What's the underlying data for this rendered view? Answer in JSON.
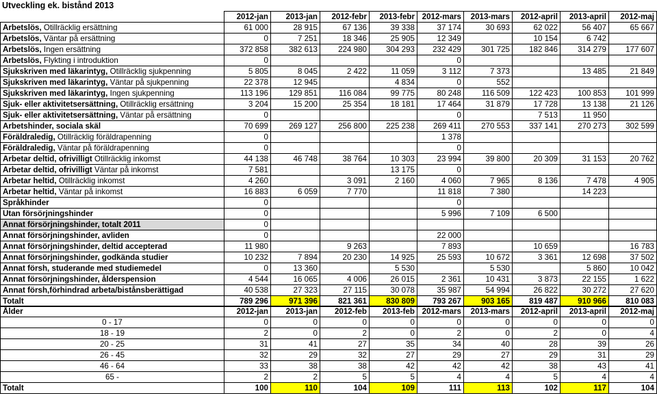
{
  "title": "Utveckling ek. bistånd 2013",
  "columns": [
    "2012-jan",
    "2013-jan",
    "2012-febr",
    "2013-febr",
    "2012-mars",
    "2013-mars",
    "2012-april",
    "2013-april",
    "2012-maj"
  ],
  "rows": [
    {
      "bold": "Arbetslös,",
      "rest": " Otillräcklig ersättning",
      "values": [
        "61 000",
        "28 915",
        "67 136",
        "39 338",
        "37 174",
        "30 693",
        "62 022",
        "56 407",
        "65 667"
      ]
    },
    {
      "bold": "Arbetslös,",
      "rest": " Väntar på ersättning",
      "values": [
        "0",
        "7 251",
        "18 346",
        "25 905",
        "12 349",
        "",
        "10 154",
        "6 742",
        ""
      ]
    },
    {
      "bold": "Arbetslös,",
      "rest": " Ingen ersättning",
      "values": [
        "372 858",
        "382 613",
        "224 980",
        "304 293",
        "232 429",
        "301 725",
        "182 846",
        "314 279",
        "177 607"
      ]
    },
    {
      "bold": "Arbetslös,",
      "rest": " Flykting i introduktion",
      "values": [
        "0",
        "",
        "",
        "",
        "0",
        "",
        "",
        "",
        ""
      ]
    },
    {
      "bold": "Sjukskriven med läkarintyg,",
      "rest": " Otillräcklig sjukpenning",
      "values": [
        "5 805",
        "8 045",
        "2 422",
        "11 059",
        "3 112",
        "7 373",
        "",
        "13 485",
        "21 849"
      ]
    },
    {
      "bold": "Sjukskriven med läkarintyg,",
      "rest": " Väntar på sjukpenning",
      "values": [
        "22 378",
        "12 945",
        "",
        "4 834",
        "0",
        "552",
        "",
        "",
        ""
      ]
    },
    {
      "bold": "Sjukskriven med läkarintyg,",
      "rest": " Ingen sjukpenning",
      "values": [
        "113 196",
        "129 851",
        "116 084",
        "99 775",
        "80 248",
        "116 509",
        "122 423",
        "100 853",
        "101 999"
      ]
    },
    {
      "bold": "Sjuk- eller aktivitetsersättning,",
      "rest": " Otillräcklig ersättning",
      "values": [
        "3 204",
        "15 200",
        "25 354",
        "18 181",
        "17 464",
        "31 879",
        "17 728",
        "13 138",
        "21 126"
      ]
    },
    {
      "bold": "Sjuk- eller aktivitetsersättning,",
      "rest": " Väntar på ersättning",
      "values": [
        "0",
        "",
        "",
        "",
        "0",
        "",
        "7 513",
        "11 950",
        ""
      ]
    },
    {
      "bold": "Arbetshinder, sociala skäl",
      "rest": "",
      "values": [
        "70 699",
        "269 127",
        "256 800",
        "225 238",
        "269 411",
        "270 553",
        "337 141",
        "270 273",
        "302 599"
      ]
    },
    {
      "bold": "Föräldraledig,",
      "rest": " Otillräcklig föräldrapenning",
      "values": [
        "0",
        "",
        "",
        "",
        "1 378",
        "",
        "",
        "",
        ""
      ]
    },
    {
      "bold": "Föräldraledig,",
      "rest": " Väntar på föräldrapenning",
      "values": [
        "0",
        "",
        "",
        "",
        "0",
        "",
        "",
        "",
        ""
      ]
    },
    {
      "bold": "Arbetar deltid, ofrivilligt",
      "rest": " Otillräcklig inkomst",
      "values": [
        "44 138",
        "46 748",
        "38 764",
        "10 303",
        "23 994",
        "39 800",
        "20 309",
        "31 153",
        "20 762"
      ]
    },
    {
      "bold": "Arbetar deltid, ofrivilligt",
      "rest": " Väntar på inkomst",
      "values": [
        "7 581",
        "",
        "",
        "13 175",
        "0",
        "",
        "",
        "",
        ""
      ]
    },
    {
      "bold": "Arbetar heltid,",
      "rest": " Otillräcklig inkomst",
      "values": [
        "4 260",
        "",
        "3 091",
        "2 160",
        "4 060",
        "7 965",
        "8 136",
        "7 478",
        "4 905"
      ]
    },
    {
      "bold": "Arbetar heltid,",
      "rest": " Väntar på inkomst",
      "values": [
        "16 883",
        "6 059",
        "7 770",
        "",
        "11 818",
        "7 380",
        "",
        "14 223",
        ""
      ]
    },
    {
      "bold": "Språkhinder",
      "rest": "",
      "values": [
        "0",
        "",
        "",
        "",
        "0",
        "",
        "",
        "",
        ""
      ]
    },
    {
      "bold": "Utan försörjningshinder",
      "rest": "",
      "values": [
        "0",
        "",
        "",
        "",
        "5 996",
        "7 109",
        "6 500",
        "",
        ""
      ]
    },
    {
      "bold": "Annat försörjningshinder, totalt 2011",
      "rest": "",
      "grey": true,
      "values": [
        "0",
        "",
        "",
        "",
        "",
        "",
        "",
        "",
        ""
      ]
    },
    {
      "bold": "Annat försörjningshinder, avliden",
      "rest": "",
      "values": [
        "0",
        "",
        "",
        "",
        "22 000",
        "",
        "",
        "",
        ""
      ]
    },
    {
      "bold": "Annat försörjningshinder, deltid accepterad",
      "rest": "",
      "values": [
        "11 980",
        "",
        "9 263",
        "",
        "7 893",
        "",
        "10 659",
        "",
        "16 783"
      ]
    },
    {
      "bold": "Annat försörjningshinder, godkända studier",
      "rest": "",
      "values": [
        "10 232",
        "7 894",
        "20 230",
        "14 925",
        "25 593",
        "10 672",
        "3 361",
        "12 698",
        "37 502"
      ]
    },
    {
      "bold": "Annat försh, studerande med studiemedel",
      "rest": "",
      "values": [
        "0",
        "13 360",
        "",
        "5 530",
        "",
        "5 530",
        "",
        "5 860",
        "10 042"
      ]
    },
    {
      "bold": "Annat försörjningshinder, ålderspension",
      "rest": "",
      "values": [
        "4 544",
        "16 065",
        "4 006",
        "26 015",
        "2 361",
        "10 431",
        "3 873",
        "22 155",
        "1 622"
      ]
    },
    {
      "bold": "Annat försh,förhindrad arbeta/bistånsberättigad",
      "rest": "",
      "values": [
        "40 538",
        "27 323",
        "27 115",
        "30 078",
        "35 987",
        "54 994",
        "26 822",
        "30 272",
        "27 620"
      ]
    }
  ],
  "total": {
    "label": "Totalt",
    "values": [
      "789 296",
      "971 396",
      "821 361",
      "830 809",
      "793 267",
      "903 165",
      "819 487",
      "910 966",
      "810 083"
    ]
  },
  "age": {
    "header": "Ålder",
    "columns": [
      "2012-jan",
      "2013-jan",
      "2012-feb",
      "2013-feb",
      "2012-mars",
      "2013-mars",
      "2012-april",
      "2013-april",
      "2012-maj"
    ],
    "rows": [
      {
        "label": "0 - 17",
        "values": [
          "0",
          "0",
          "0",
          "0",
          "0",
          "0",
          "0",
          "0",
          "0"
        ]
      },
      {
        "label": "18 - 19",
        "values": [
          "2",
          "0",
          "2",
          "0",
          "2",
          "0",
          "2",
          "0",
          "4"
        ]
      },
      {
        "label": "20 - 25",
        "values": [
          "31",
          "41",
          "27",
          "35",
          "34",
          "40",
          "28",
          "39",
          "26"
        ]
      },
      {
        "label": "26 - 45",
        "values": [
          "32",
          "29",
          "32",
          "27",
          "29",
          "27",
          "29",
          "31",
          "29"
        ]
      },
      {
        "label": "46 - 64",
        "values": [
          "33",
          "38",
          "38",
          "42",
          "42",
          "42",
          "38",
          "43",
          "41"
        ]
      },
      {
        "label": "65 -",
        "values": [
          "2",
          "2",
          "5",
          "5",
          "4",
          "4",
          "5",
          "4",
          "4"
        ]
      }
    ],
    "total": {
      "label": "Totalt",
      "values": [
        "100",
        "110",
        "104",
        "109",
        "111",
        "113",
        "102",
        "117",
        "104"
      ]
    }
  },
  "highlight_color": "#ffff00",
  "grey_color": "#d9d9d9"
}
